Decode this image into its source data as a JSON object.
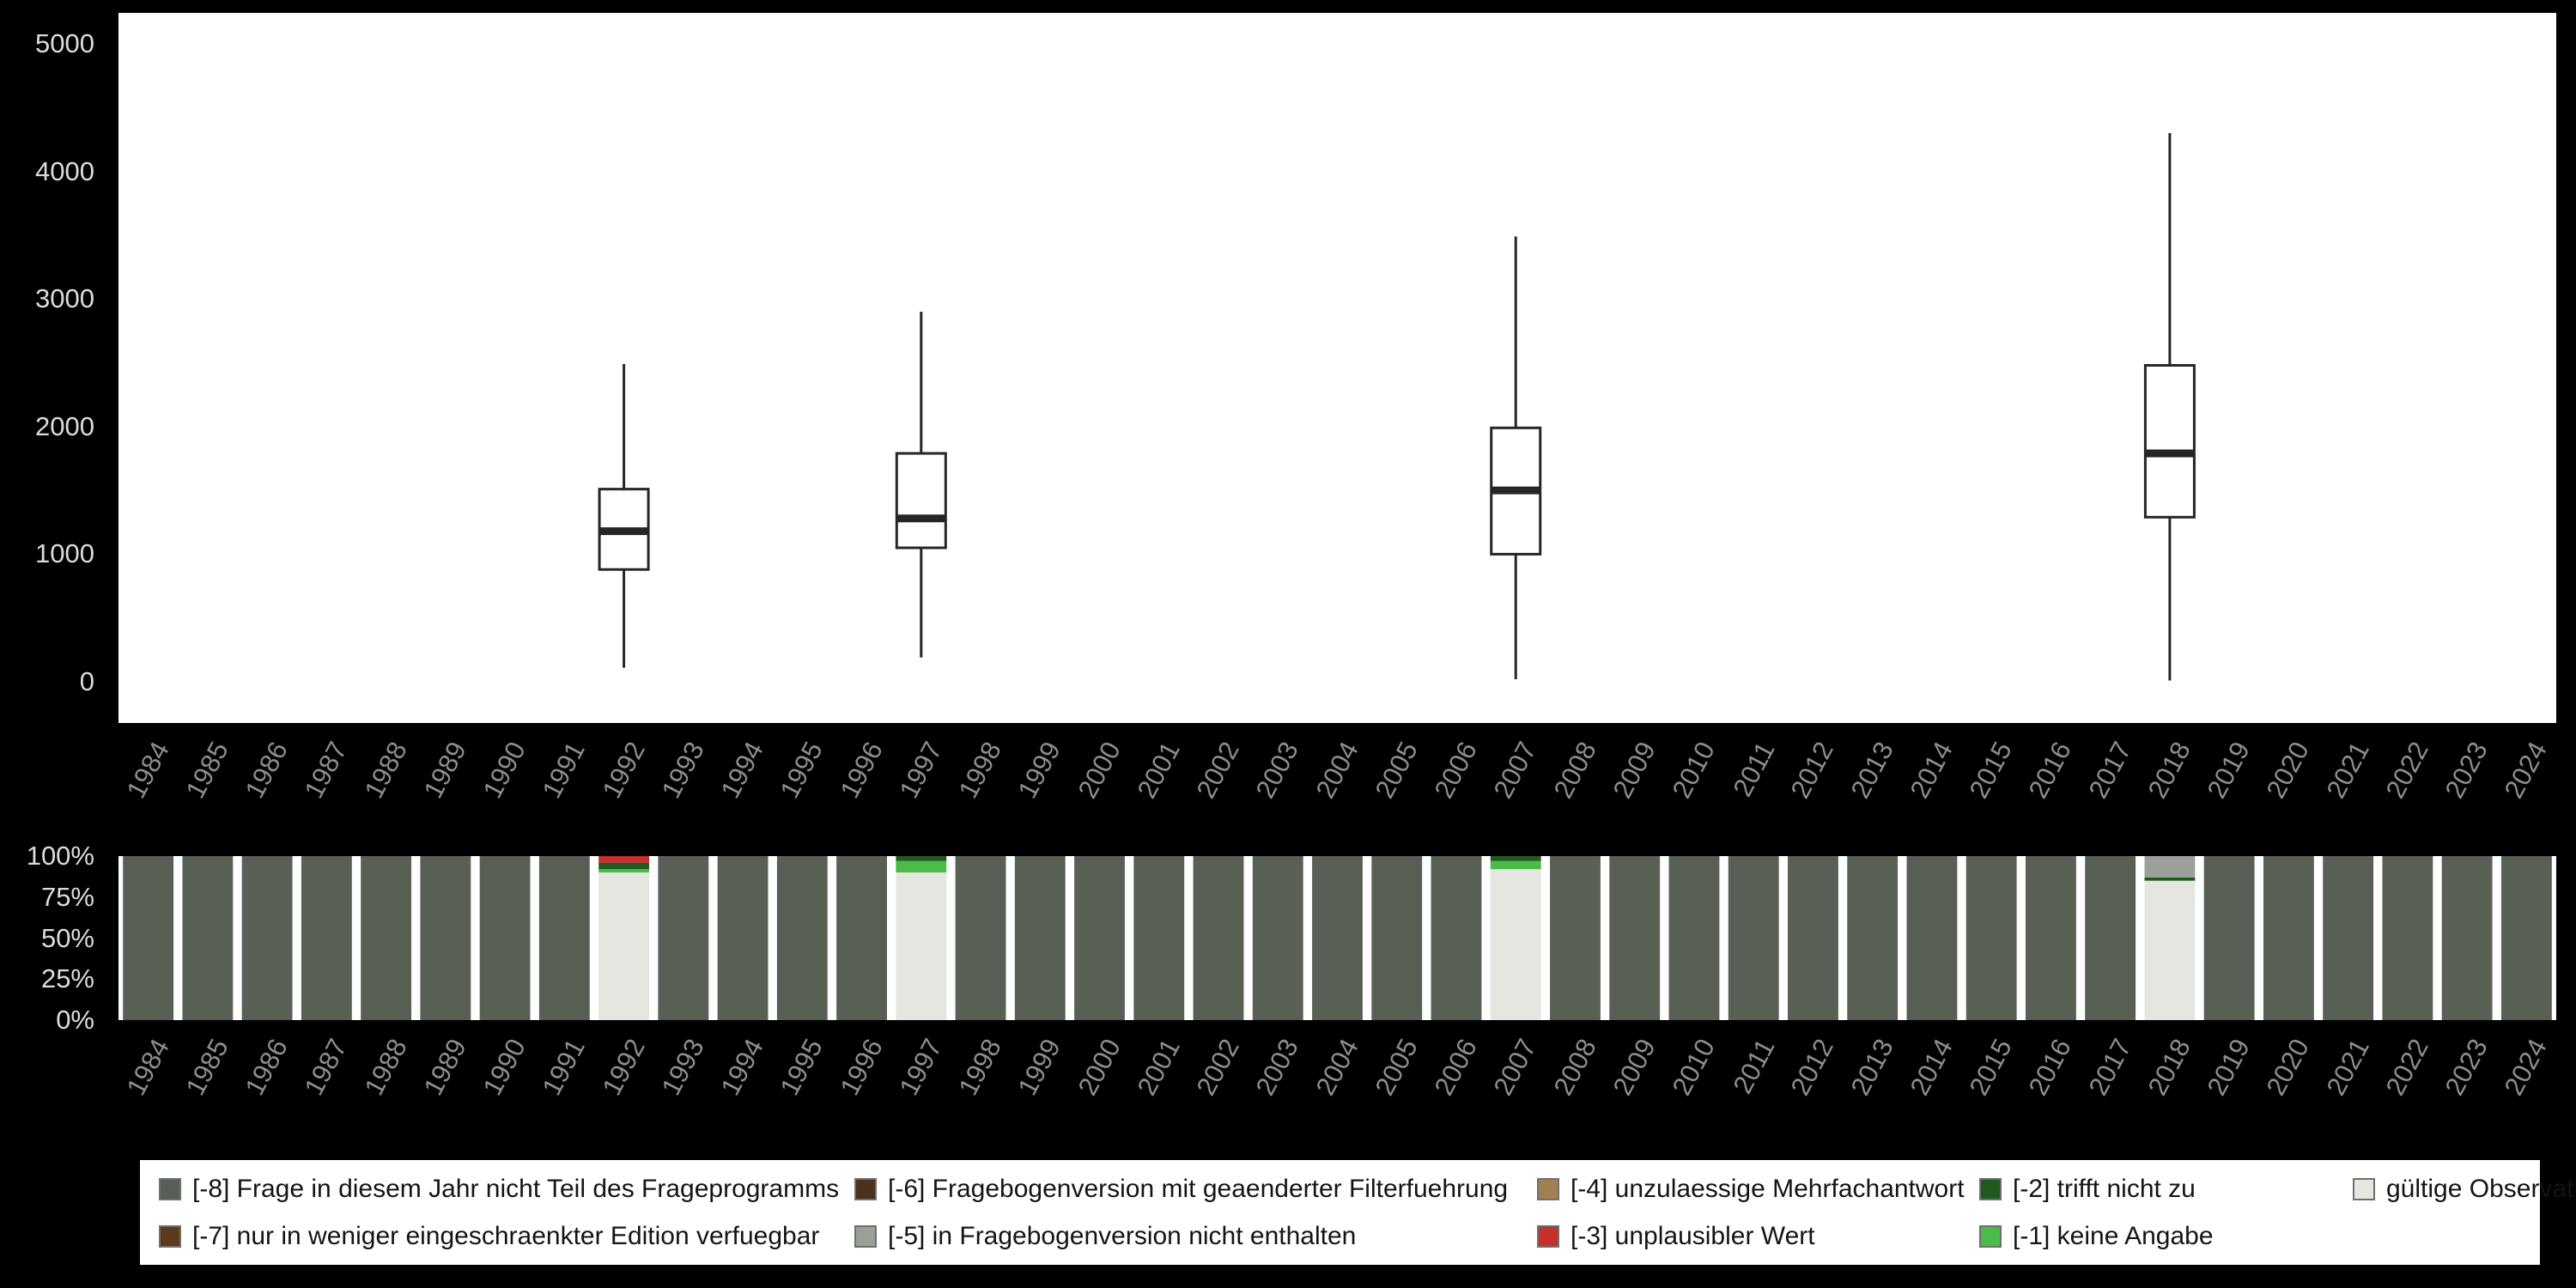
{
  "colors": {
    "background": "#000000",
    "panel": "#ffffff",
    "axis_value_text": "#dcdcdc",
    "year_text": "#8d8d8d",
    "box_stroke": "#262626"
  },
  "chart_data": [
    {
      "type": "boxplot",
      "title": "",
      "xlabel": "",
      "ylabel": "",
      "categories": [
        1984,
        1985,
        1986,
        1987,
        1988,
        1989,
        1990,
        1991,
        1992,
        1993,
        1994,
        1995,
        1996,
        1997,
        1998,
        1999,
        2000,
        2001,
        2002,
        2003,
        2004,
        2005,
        2006,
        2007,
        2008,
        2009,
        2010,
        2011,
        2012,
        2013,
        2014,
        2015,
        2016,
        2017,
        2018,
        2019,
        2020,
        2021,
        2022,
        2023,
        2024
      ],
      "ylim": [
        0,
        5000
      ],
      "yticks": [
        0,
        1000,
        2000,
        3000,
        4000,
        5000
      ],
      "boxes": [
        {
          "year": 1992,
          "min": 110,
          "q1": 880,
          "median": 1180,
          "q3": 1510,
          "max": 2490
        },
        {
          "year": 1997,
          "min": 190,
          "q1": 1050,
          "median": 1280,
          "q3": 1790,
          "max": 2900
        },
        {
          "year": 2007,
          "min": 20,
          "q1": 1000,
          "median": 1500,
          "q3": 1990,
          "max": 3490
        },
        {
          "year": 2018,
          "min": 10,
          "q1": 1290,
          "median": 1790,
          "q3": 2480,
          "max": 4300
        }
      ]
    },
    {
      "type": "bar",
      "stacked": true,
      "percent": true,
      "title": "",
      "categories": [
        1984,
        1985,
        1986,
        1987,
        1988,
        1989,
        1990,
        1991,
        1992,
        1993,
        1994,
        1995,
        1996,
        1997,
        1998,
        1999,
        2000,
        2001,
        2002,
        2003,
        2004,
        2005,
        2006,
        2007,
        2008,
        2009,
        2010,
        2011,
        2012,
        2013,
        2014,
        2015,
        2016,
        2017,
        2018,
        2019,
        2020,
        2021,
        2022,
        2023,
        2024
      ],
      "ytick_labels": [
        "100%",
        "75%",
        "50%",
        "25%",
        "0%"
      ],
      "ytick_values": [
        100,
        75,
        50,
        25,
        0
      ],
      "default_segments": [
        {
          "key": "-8",
          "value": 100
        }
      ],
      "overrides": {
        "1992": [
          {
            "key": "valid",
            "value": 90
          },
          {
            "key": "-1",
            "value": 2
          },
          {
            "key": "-2",
            "value": 4
          },
          {
            "key": "-3",
            "value": 4
          }
        ],
        "1997": [
          {
            "key": "valid",
            "value": 90
          },
          {
            "key": "-1",
            "value": 7
          },
          {
            "key": "-2",
            "value": 3
          }
        ],
        "2007": [
          {
            "key": "valid",
            "value": 92
          },
          {
            "key": "-1",
            "value": 5
          },
          {
            "key": "-2",
            "value": 3
          }
        ],
        "2018": [
          {
            "key": "valid",
            "value": 85
          },
          {
            "key": "-2",
            "value": 2
          },
          {
            "key": "-5",
            "value": 13
          }
        ]
      }
    }
  ],
  "legend": {
    "items": [
      {
        "key": "-8",
        "label": "[-8] Frage in diesem Jahr nicht Teil des Frageprogramms",
        "color": "#586056"
      },
      {
        "key": "-7",
        "label": "[-7] nur in weniger eingeschraenkter Edition verfuegbar",
        "color": "#5e3a1d"
      },
      {
        "key": "-6",
        "label": "[-6] Fragebogenversion mit geaenderter Filterfuehrung",
        "color": "#4a321c"
      },
      {
        "key": "-5",
        "label": "[-5] in Fragebogenversion nicht enthalten",
        "color": "#9aa098"
      },
      {
        "key": "-4",
        "label": "[-4] unzulaessige Mehrfachantwort",
        "color": "#a08050"
      },
      {
        "key": "-3",
        "label": "[-3] unplausibler Wert",
        "color": "#c62f2a"
      },
      {
        "key": "-2",
        "label": "[-2] trifft nicht zu",
        "color": "#1f5a1f"
      },
      {
        "key": "-1",
        "label": "[-1] keine Angabe",
        "color": "#4cbb49"
      },
      {
        "key": "valid",
        "label": "gültige Observationen",
        "color": "#e6e6e0"
      }
    ],
    "row1_keys": [
      "-8",
      "-6",
      "-4",
      "-2",
      "valid"
    ],
    "row2_keys": [
      "-7",
      "-5",
      "-3",
      "-1"
    ]
  }
}
